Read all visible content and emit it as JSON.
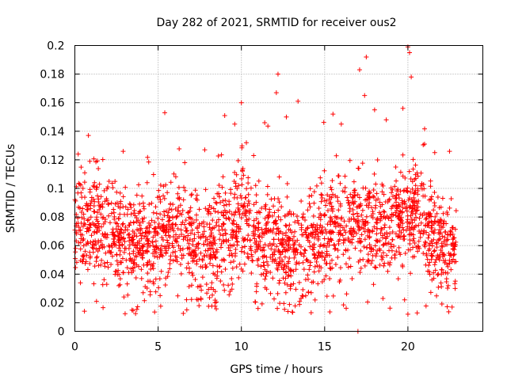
{
  "chart_data": {
    "type": "scatter",
    "title": "Day 282 of 2021, SRMTID for receiver ous2",
    "xlabel": "GPS time / hours",
    "ylabel": "SRMTID / TECUs",
    "xlim": [
      0,
      24.5
    ],
    "ylim": [
      0,
      0.2
    ],
    "x_ticks": [
      0,
      5,
      10,
      15,
      20
    ],
    "x_tick_labels": [
      "0",
      "5",
      "10",
      "15",
      "20"
    ],
    "y_ticks": [
      0,
      0.02,
      0.04,
      0.06,
      0.08,
      0.1,
      0.12,
      0.14,
      0.16,
      0.18,
      0.2
    ],
    "y_tick_labels": [
      "0",
      "0.02",
      "0.04",
      "0.06",
      "0.08",
      "0.1",
      "0.12",
      "0.14",
      "0.16",
      "0.18",
      "0.2"
    ],
    "grid": true,
    "marker": "+",
    "color": "#ff0000",
    "x_end": 22.9,
    "point_count": 2300,
    "baseline_mean": 0.063,
    "typical_spread": 0.017,
    "highlighted_points": [
      {
        "x": 0.2,
        "y": 0.124
      },
      {
        "x": 0.9,
        "y": 0.119
      },
      {
        "x": 1.8,
        "y": 0.091
      },
      {
        "x": 2.9,
        "y": 0.126
      },
      {
        "x": 5.4,
        "y": 0.153
      },
      {
        "x": 6.6,
        "y": 0.118
      },
      {
        "x": 7.8,
        "y": 0.127
      },
      {
        "x": 9.0,
        "y": 0.151
      },
      {
        "x": 9.6,
        "y": 0.145
      },
      {
        "x": 10.0,
        "y": 0.16
      },
      {
        "x": 10.3,
        "y": 0.132
      },
      {
        "x": 11.4,
        "y": 0.146
      },
      {
        "x": 12.2,
        "y": 0.18
      },
      {
        "x": 12.1,
        "y": 0.167
      },
      {
        "x": 12.7,
        "y": 0.15
      },
      {
        "x": 13.4,
        "y": 0.161
      },
      {
        "x": 15.5,
        "y": 0.152
      },
      {
        "x": 16.0,
        "y": 0.145
      },
      {
        "x": 17.4,
        "y": 0.165
      },
      {
        "x": 17.5,
        "y": 0.192
      },
      {
        "x": 17.1,
        "y": 0.183
      },
      {
        "x": 18.0,
        "y": 0.155
      },
      {
        "x": 18.7,
        "y": 0.148
      },
      {
        "x": 19.7,
        "y": 0.156
      },
      {
        "x": 20.0,
        "y": 0.199
      },
      {
        "x": 20.1,
        "y": 0.195
      },
      {
        "x": 20.2,
        "y": 0.178
      },
      {
        "x": 21.0,
        "y": 0.131
      },
      {
        "x": 22.5,
        "y": 0.126
      },
      {
        "x": 4.1,
        "y": 0.027
      },
      {
        "x": 7.4,
        "y": 0.022
      },
      {
        "x": 11.0,
        "y": 0.016
      },
      {
        "x": 13.5,
        "y": 0.021
      },
      {
        "x": 18.5,
        "y": 0.023
      },
      {
        "x": 19.8,
        "y": 0.022
      },
      {
        "x": 20.0,
        "y": 0.012
      },
      {
        "x": 1.3,
        "y": 0.021
      },
      {
        "x": 17.0,
        "y": 0.0
      }
    ]
  }
}
